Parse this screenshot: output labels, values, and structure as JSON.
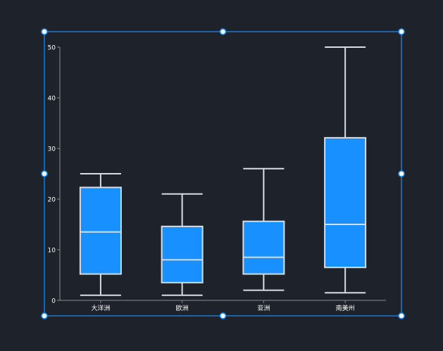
{
  "chart_data": {
    "type": "boxplot",
    "categories": [
      "大洋洲",
      "欧洲",
      "亚洲",
      "南美州"
    ],
    "series": [
      {
        "boxes": [
          {
            "min": 1,
            "q1": 5.2,
            "median": 13.5,
            "q3": 22.3,
            "max": 25
          },
          {
            "min": 1,
            "q1": 3.5,
            "median": 8,
            "q3": 14.6,
            "max": 21
          },
          {
            "min": 2,
            "q1": 5.2,
            "median": 8.5,
            "q3": 15.6,
            "max": 26
          },
          {
            "min": 1.5,
            "q1": 6.5,
            "median": 15,
            "q3": 32.1,
            "max": 50
          }
        ]
      }
    ],
    "yticks": [
      0,
      10,
      20,
      30,
      40,
      50
    ],
    "ylim": [
      0,
      50
    ],
    "grid": false,
    "colors": {
      "box_fill": "#1890ff",
      "box_stroke": "#d8dce3",
      "axis": "#8c8c8c",
      "label": "#ffffff",
      "selection": "#1890ff"
    }
  }
}
